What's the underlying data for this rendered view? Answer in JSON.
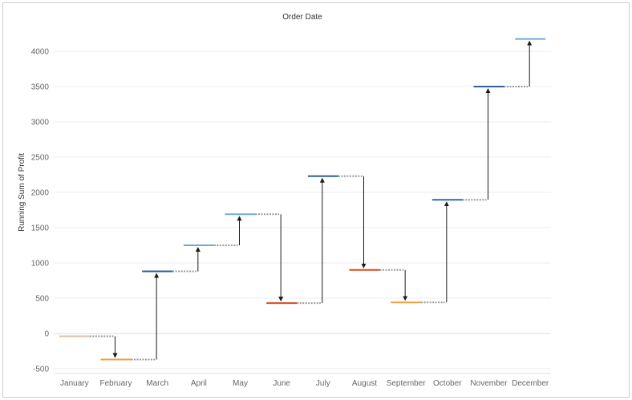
{
  "chart_data": {
    "type": "waterfall",
    "title": "Order Date",
    "xlabel": "",
    "ylabel": "Running Sum of Profit",
    "categories": [
      "January",
      "February",
      "March",
      "April",
      "May",
      "June",
      "July",
      "August",
      "September",
      "October",
      "November",
      "December"
    ],
    "running_sum": [
      -40,
      -370,
      880,
      1250,
      1690,
      430,
      2230,
      900,
      440,
      1895,
      3500,
      4175
    ],
    "bar_colors": [
      "#d9c5a6",
      "#f0a23c",
      "#2e5f9a",
      "#6eaad6",
      "#6eaad6",
      "#d9481e",
      "#2e5f9a",
      "#d9481e",
      "#f0a23c",
      "#2e6ba6",
      "#2e5f9a",
      "#6eaad6"
    ],
    "yticks": [
      -500,
      0,
      500,
      1000,
      1500,
      2000,
      2500,
      3000,
      3500,
      4000
    ],
    "ylim": [
      -600,
      4350
    ],
    "grid": true,
    "legend": "none",
    "colors": {
      "connector": "#9a9a9a",
      "arrow": "#1a1a1a",
      "grid": "#ececec",
      "axis": "#cfcfcf"
    }
  }
}
